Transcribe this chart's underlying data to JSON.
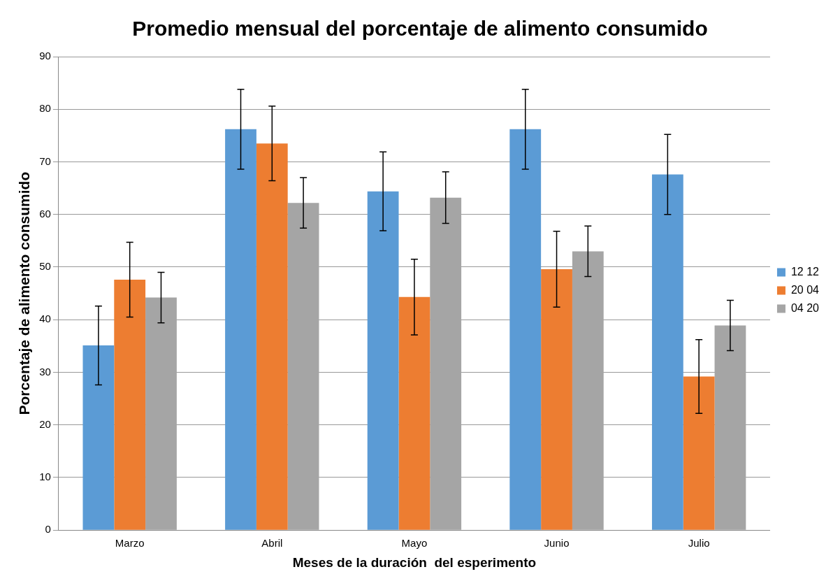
{
  "chart_data": {
    "type": "bar",
    "title": "Promedio mensual del porcentaje de alimento consumido",
    "xlabel": "Meses de la duración  del esperimento",
    "ylabel": "Porcentaje de alimento consumido",
    "categories": [
      "Marzo",
      "Abril",
      "Mayo",
      "Junio",
      "Julio"
    ],
    "series": [
      {
        "name": "12 12",
        "color": "#5b9bd5",
        "values": [
          35.1,
          76.2,
          64.4,
          76.2,
          67.6
        ],
        "errors": [
          7.5,
          7.6,
          7.5,
          7.6,
          7.6
        ]
      },
      {
        "name": "20 04",
        "color": "#ed7d31",
        "values": [
          47.6,
          73.5,
          44.3,
          49.6,
          29.2
        ],
        "errors": [
          7.1,
          7.1,
          7.2,
          7.2,
          7.0
        ]
      },
      {
        "name": "04 20",
        "color": "#a5a5a5",
        "values": [
          44.2,
          62.2,
          63.2,
          53.0,
          38.9
        ],
        "errors": [
          4.8,
          4.8,
          4.9,
          4.8,
          4.8
        ]
      }
    ],
    "ylim": [
      0,
      90
    ],
    "yticks": [
      0,
      10,
      20,
      30,
      40,
      50,
      60,
      70,
      80,
      90
    ],
    "grid": "y",
    "legend": "right"
  }
}
